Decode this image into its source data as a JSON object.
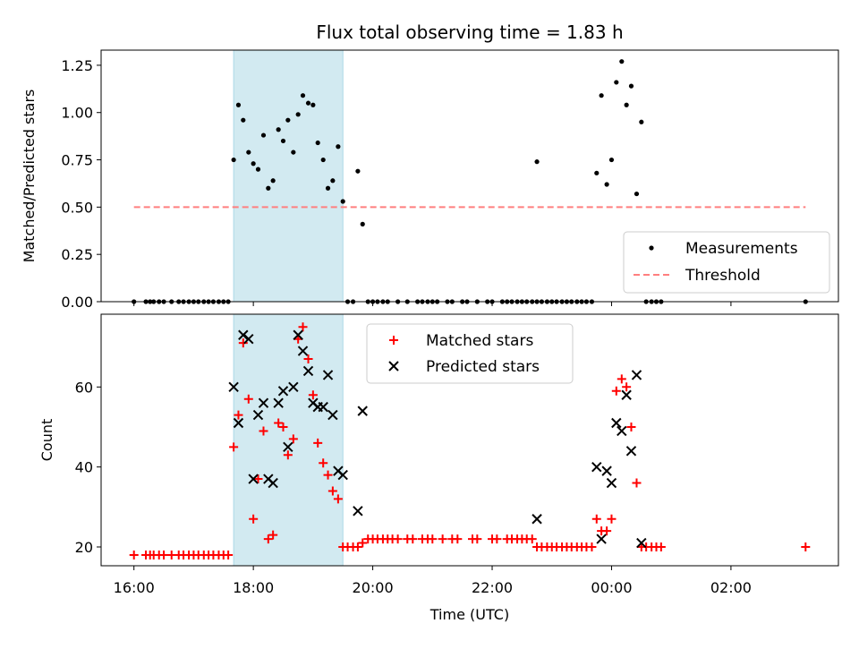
{
  "title": "Flux total observing time = 1.83 h",
  "colors": {
    "shade": "#add8e6",
    "threshold": "#ff7f7f",
    "matched": "#ff0000",
    "predicted": "#000000",
    "measurement": "#000000"
  },
  "chart_data": [
    {
      "type": "scatter",
      "name": "ratio-panel",
      "title": "Flux total observing time = 1.83 h",
      "xlabel": "",
      "ylabel": "Matched/Predicted stars",
      "xlim": [
        15.45,
        27.8
      ],
      "ylim": [
        0,
        1.33
      ],
      "yticks": [
        0.0,
        0.25,
        0.5,
        0.75,
        1.0,
        1.25
      ],
      "ytick_labels": [
        "0.00",
        "0.25",
        "0.50",
        "0.75",
        "1.00",
        "1.25"
      ],
      "legend_position": "lower-right",
      "shaded_interval": [
        17.67,
        19.5
      ],
      "threshold": {
        "name": "Threshold",
        "y": 0.5,
        "x_range": [
          16.0,
          27.25
        ]
      },
      "series": [
        {
          "name": "Measurements",
          "points": [
            [
              16.0,
              0
            ],
            [
              16.2,
              0
            ],
            [
              16.27,
              0
            ],
            [
              16.33,
              0
            ],
            [
              16.42,
              0
            ],
            [
              16.5,
              0
            ],
            [
              16.63,
              0
            ],
            [
              16.75,
              0
            ],
            [
              16.83,
              0
            ],
            [
              16.92,
              0
            ],
            [
              17.0,
              0
            ],
            [
              17.08,
              0
            ],
            [
              17.17,
              0
            ],
            [
              17.25,
              0
            ],
            [
              17.33,
              0
            ],
            [
              17.42,
              0
            ],
            [
              17.5,
              0
            ],
            [
              17.58,
              0
            ],
            [
              17.67,
              0.75
            ],
            [
              17.75,
              1.04
            ],
            [
              17.83,
              0.96
            ],
            [
              17.92,
              0.79
            ],
            [
              18.0,
              0.73
            ],
            [
              18.08,
              0.7
            ],
            [
              18.17,
              0.88
            ],
            [
              18.25,
              0.6
            ],
            [
              18.33,
              0.64
            ],
            [
              18.42,
              0.91
            ],
            [
              18.5,
              0.85
            ],
            [
              18.58,
              0.96
            ],
            [
              18.67,
              0.79
            ],
            [
              18.75,
              0.99
            ],
            [
              18.83,
              1.09
            ],
            [
              18.92,
              1.05
            ],
            [
              19.0,
              1.04
            ],
            [
              19.08,
              0.84
            ],
            [
              19.17,
              0.75
            ],
            [
              19.25,
              0.6
            ],
            [
              19.33,
              0.64
            ],
            [
              19.42,
              0.82
            ],
            [
              19.5,
              0.53
            ],
            [
              19.58,
              0
            ],
            [
              19.67,
              0
            ],
            [
              19.75,
              0.69
            ],
            [
              19.83,
              0.41
            ],
            [
              19.92,
              0
            ],
            [
              20.0,
              0
            ],
            [
              20.08,
              0
            ],
            [
              20.17,
              0
            ],
            [
              20.25,
              0
            ],
            [
              20.42,
              0
            ],
            [
              20.58,
              0
            ],
            [
              20.75,
              0
            ],
            [
              20.83,
              0
            ],
            [
              20.92,
              0
            ],
            [
              21.0,
              0
            ],
            [
              21.08,
              0
            ],
            [
              21.25,
              0
            ],
            [
              21.33,
              0
            ],
            [
              21.5,
              0
            ],
            [
              21.58,
              0
            ],
            [
              21.75,
              0
            ],
            [
              21.92,
              0
            ],
            [
              22.0,
              0
            ],
            [
              22.17,
              0
            ],
            [
              22.25,
              0
            ],
            [
              22.33,
              0
            ],
            [
              22.42,
              0
            ],
            [
              22.5,
              0
            ],
            [
              22.58,
              0
            ],
            [
              22.67,
              0
            ],
            [
              22.75,
              0
            ],
            [
              22.83,
              0
            ],
            [
              22.92,
              0
            ],
            [
              23.0,
              0
            ],
            [
              23.08,
              0
            ],
            [
              23.17,
              0
            ],
            [
              23.25,
              0
            ],
            [
              23.33,
              0
            ],
            [
              23.42,
              0
            ],
            [
              23.5,
              0
            ],
            [
              23.58,
              0
            ],
            [
              23.67,
              0
            ],
            [
              22.75,
              0.74
            ],
            [
              23.75,
              0.68
            ],
            [
              23.83,
              1.09
            ],
            [
              23.92,
              0.62
            ],
            [
              24.0,
              0.75
            ],
            [
              24.08,
              1.16
            ],
            [
              24.17,
              1.27
            ],
            [
              24.25,
              1.04
            ],
            [
              24.33,
              1.14
            ],
            [
              24.42,
              0.57
            ],
            [
              24.5,
              0.95
            ],
            [
              24.58,
              0
            ],
            [
              24.67,
              0
            ],
            [
              24.75,
              0
            ],
            [
              24.83,
              0
            ],
            [
              27.25,
              0
            ]
          ]
        }
      ]
    },
    {
      "type": "scatter",
      "name": "count-panel",
      "title": "",
      "xlabel": "Time (UTC)",
      "ylabel": "Count",
      "xlim": [
        15.45,
        27.8
      ],
      "ylim": [
        15.3,
        78.2
      ],
      "yticks": [
        20,
        40,
        60
      ],
      "xticks": [
        16,
        18,
        20,
        22,
        24,
        26
      ],
      "xtick_labels": [
        "16:00",
        "18:00",
        "20:00",
        "22:00",
        "00:00",
        "02:00"
      ],
      "legend_position": "upper-center",
      "shaded_interval": [
        17.67,
        19.5
      ],
      "series": [
        {
          "name": "Matched stars",
          "marker": "plus",
          "points": [
            [
              16.0,
              18
            ],
            [
              16.2,
              18
            ],
            [
              16.27,
              18
            ],
            [
              16.33,
              18
            ],
            [
              16.42,
              18
            ],
            [
              16.5,
              18
            ],
            [
              16.63,
              18
            ],
            [
              16.75,
              18
            ],
            [
              16.83,
              18
            ],
            [
              16.92,
              18
            ],
            [
              17.0,
              18
            ],
            [
              17.08,
              18
            ],
            [
              17.17,
              18
            ],
            [
              17.25,
              18
            ],
            [
              17.33,
              18
            ],
            [
              17.42,
              18
            ],
            [
              17.5,
              18
            ],
            [
              17.58,
              18
            ],
            [
              17.67,
              45
            ],
            [
              17.75,
              53
            ],
            [
              17.83,
              71
            ],
            [
              17.92,
              57
            ],
            [
              18.0,
              27
            ],
            [
              18.08,
              37
            ],
            [
              18.17,
              49
            ],
            [
              18.25,
              22
            ],
            [
              18.33,
              23
            ],
            [
              18.42,
              51
            ],
            [
              18.5,
              50
            ],
            [
              18.58,
              43
            ],
            [
              18.67,
              47
            ],
            [
              18.75,
              72
            ],
            [
              18.83,
              75
            ],
            [
              18.92,
              67
            ],
            [
              19.0,
              58
            ],
            [
              19.08,
              46
            ],
            [
              19.17,
              41
            ],
            [
              19.25,
              38
            ],
            [
              19.33,
              34
            ],
            [
              19.42,
              32
            ],
            [
              19.5,
              20
            ],
            [
              19.58,
              20
            ],
            [
              19.67,
              20
            ],
            [
              19.75,
              20
            ],
            [
              19.83,
              21
            ],
            [
              19.92,
              22
            ],
            [
              20.0,
              22
            ],
            [
              20.08,
              22
            ],
            [
              20.17,
              22
            ],
            [
              20.25,
              22
            ],
            [
              20.33,
              22
            ],
            [
              20.42,
              22
            ],
            [
              20.58,
              22
            ],
            [
              20.67,
              22
            ],
            [
              20.83,
              22
            ],
            [
              20.92,
              22
            ],
            [
              21.0,
              22
            ],
            [
              21.17,
              22
            ],
            [
              21.33,
              22
            ],
            [
              21.42,
              22
            ],
            [
              21.67,
              22
            ],
            [
              21.75,
              22
            ],
            [
              22.0,
              22
            ],
            [
              22.08,
              22
            ],
            [
              22.25,
              22
            ],
            [
              22.33,
              22
            ],
            [
              22.42,
              22
            ],
            [
              22.5,
              22
            ],
            [
              22.58,
              22
            ],
            [
              22.67,
              22
            ],
            [
              22.75,
              20
            ],
            [
              22.83,
              20
            ],
            [
              22.92,
              20
            ],
            [
              23.0,
              20
            ],
            [
              23.08,
              20
            ],
            [
              23.17,
              20
            ],
            [
              23.25,
              20
            ],
            [
              23.33,
              20
            ],
            [
              23.42,
              20
            ],
            [
              23.5,
              20
            ],
            [
              23.58,
              20
            ],
            [
              23.67,
              20
            ],
            [
              23.75,
              27
            ],
            [
              23.83,
              24
            ],
            [
              23.92,
              24
            ],
            [
              24.0,
              27
            ],
            [
              24.08,
              59
            ],
            [
              24.17,
              62
            ],
            [
              24.25,
              60
            ],
            [
              24.33,
              50
            ],
            [
              24.42,
              36
            ],
            [
              24.5,
              20
            ],
            [
              24.58,
              20
            ],
            [
              24.67,
              20
            ],
            [
              24.75,
              20
            ],
            [
              24.83,
              20
            ],
            [
              27.25,
              20
            ]
          ]
        },
        {
          "name": "Predicted stars",
          "marker": "x",
          "points": [
            [
              17.67,
              60
            ],
            [
              17.75,
              51
            ],
            [
              17.83,
              73
            ],
            [
              17.92,
              72
            ],
            [
              18.0,
              37
            ],
            [
              18.08,
              53
            ],
            [
              18.17,
              56
            ],
            [
              18.25,
              37
            ],
            [
              18.33,
              36
            ],
            [
              18.42,
              56
            ],
            [
              18.5,
              59
            ],
            [
              18.58,
              45
            ],
            [
              18.67,
              60
            ],
            [
              18.75,
              73
            ],
            [
              18.83,
              69
            ],
            [
              18.92,
              64
            ],
            [
              19.0,
              56
            ],
            [
              19.08,
              55
            ],
            [
              19.17,
              55
            ],
            [
              19.25,
              63
            ],
            [
              19.33,
              53
            ],
            [
              19.42,
              39
            ],
            [
              19.5,
              38
            ],
            [
              19.75,
              29
            ],
            [
              19.83,
              54
            ],
            [
              22.75,
              27
            ],
            [
              23.75,
              40
            ],
            [
              23.83,
              22
            ],
            [
              23.92,
              39
            ],
            [
              24.0,
              36
            ],
            [
              24.08,
              51
            ],
            [
              24.17,
              49
            ],
            [
              24.25,
              58
            ],
            [
              24.33,
              44
            ],
            [
              24.42,
              63
            ],
            [
              24.5,
              21
            ]
          ]
        }
      ]
    }
  ]
}
